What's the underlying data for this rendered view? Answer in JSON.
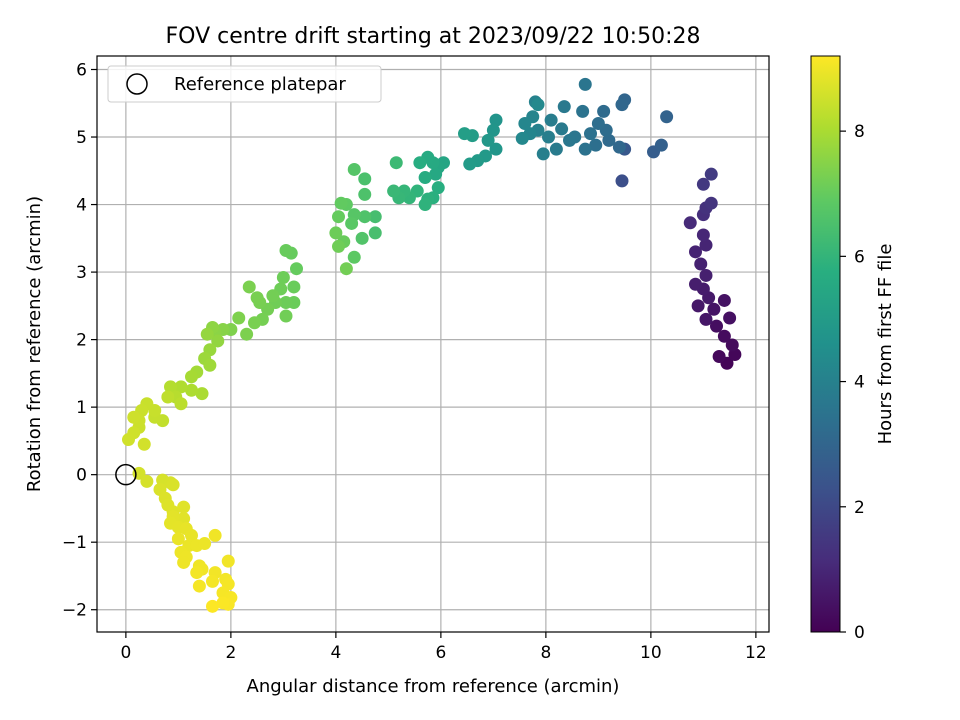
{
  "chart_data": {
    "type": "scatter",
    "title": "FOV centre drift starting at 2023/09/22 10:50:28",
    "xlabel": "Angular distance from reference (arcmin)",
    "ylabel": "Rotation from reference (arcmin)",
    "xlim": [
      -0.55,
      12.25
    ],
    "ylim": [
      -2.33,
      6.2
    ],
    "xticks": [
      0,
      2,
      4,
      6,
      8,
      10,
      12
    ],
    "yticks": [
      -2,
      -1,
      0,
      1,
      2,
      3,
      4,
      5,
      6
    ],
    "grid": true,
    "legend": {
      "position": "top-left",
      "entries": [
        "Reference platepar"
      ]
    },
    "reference_point": {
      "x": 0,
      "y": 0,
      "label": "Reference platepar"
    },
    "colorbar": {
      "label": "Hours from first FF file",
      "colormap": "viridis",
      "range": [
        0,
        9.2
      ],
      "ticks": [
        0,
        2,
        4,
        6,
        8
      ]
    },
    "series": [
      {
        "points": [
          {
            "x": 11.45,
            "y": 1.65,
            "t": 0.1
          },
          {
            "x": 11.6,
            "y": 1.78,
            "t": 0.15
          },
          {
            "x": 11.3,
            "y": 1.75,
            "t": 0.2
          },
          {
            "x": 11.55,
            "y": 1.92,
            "t": 0.25
          },
          {
            "x": 11.4,
            "y": 2.05,
            "t": 0.3
          },
          {
            "x": 11.25,
            "y": 2.2,
            "t": 0.35
          },
          {
            "x": 11.5,
            "y": 2.32,
            "t": 0.4
          },
          {
            "x": 11.4,
            "y": 2.58,
            "t": 0.45
          },
          {
            "x": 11.2,
            "y": 2.45,
            "t": 0.5
          },
          {
            "x": 11.05,
            "y": 2.3,
            "t": 0.55
          },
          {
            "x": 10.9,
            "y": 2.5,
            "t": 0.6
          },
          {
            "x": 11.1,
            "y": 2.62,
            "t": 0.65
          },
          {
            "x": 11.0,
            "y": 2.75,
            "t": 0.7
          },
          {
            "x": 10.85,
            "y": 2.82,
            "t": 0.75
          },
          {
            "x": 11.05,
            "y": 2.95,
            "t": 0.8
          },
          {
            "x": 10.95,
            "y": 3.12,
            "t": 0.85
          },
          {
            "x": 10.85,
            "y": 3.3,
            "t": 0.9
          },
          {
            "x": 11.05,
            "y": 3.4,
            "t": 0.95
          },
          {
            "x": 11.0,
            "y": 3.55,
            "t": 1.0
          },
          {
            "x": 10.75,
            "y": 3.73,
            "t": 1.1
          },
          {
            "x": 11.0,
            "y": 3.85,
            "t": 1.2
          },
          {
            "x": 11.05,
            "y": 3.95,
            "t": 1.3
          },
          {
            "x": 11.15,
            "y": 4.02,
            "t": 1.4
          },
          {
            "x": 11.0,
            "y": 4.3,
            "t": 1.5
          },
          {
            "x": 11.15,
            "y": 4.45,
            "t": 1.6
          },
          {
            "x": 9.45,
            "y": 4.35,
            "t": 2.2
          },
          {
            "x": 9.5,
            "y": 4.82,
            "t": 2.5
          },
          {
            "x": 10.05,
            "y": 4.78,
            "t": 2.7
          },
          {
            "x": 10.2,
            "y": 4.88,
            "t": 2.8
          },
          {
            "x": 10.3,
            "y": 5.3,
            "t": 2.9
          },
          {
            "x": 9.5,
            "y": 5.55,
            "t": 3.0
          },
          {
            "x": 9.45,
            "y": 5.48,
            "t": 3.05
          },
          {
            "x": 9.4,
            "y": 4.85,
            "t": 3.1
          },
          {
            "x": 9.2,
            "y": 4.95,
            "t": 3.15
          },
          {
            "x": 9.1,
            "y": 5.38,
            "t": 3.2
          },
          {
            "x": 9.15,
            "y": 5.1,
            "t": 3.25
          },
          {
            "x": 9.0,
            "y": 5.2,
            "t": 3.3
          },
          {
            "x": 8.95,
            "y": 4.88,
            "t": 3.35
          },
          {
            "x": 8.85,
            "y": 5.05,
            "t": 3.4
          },
          {
            "x": 8.75,
            "y": 4.82,
            "t": 3.45
          },
          {
            "x": 8.7,
            "y": 5.38,
            "t": 3.5
          },
          {
            "x": 8.75,
            "y": 5.78,
            "t": 3.55
          },
          {
            "x": 8.55,
            "y": 5.0,
            "t": 3.6
          },
          {
            "x": 8.45,
            "y": 4.95,
            "t": 3.65
          },
          {
            "x": 8.35,
            "y": 5.45,
            "t": 3.7
          },
          {
            "x": 8.3,
            "y": 5.12,
            "t": 3.75
          },
          {
            "x": 8.2,
            "y": 4.82,
            "t": 3.8
          },
          {
            "x": 8.1,
            "y": 5.25,
            "t": 3.85
          },
          {
            "x": 8.05,
            "y": 5.0,
            "t": 3.9
          },
          {
            "x": 7.95,
            "y": 4.75,
            "t": 3.95
          },
          {
            "x": 7.85,
            "y": 5.1,
            "t": 4.0
          },
          {
            "x": 7.8,
            "y": 5.52,
            "t": 4.05
          },
          {
            "x": 7.75,
            "y": 5.3,
            "t": 4.1
          },
          {
            "x": 7.7,
            "y": 5.05,
            "t": 4.15
          },
          {
            "x": 7.6,
            "y": 5.2,
            "t": 4.2
          },
          {
            "x": 7.55,
            "y": 4.98,
            "t": 4.25
          },
          {
            "x": 7.85,
            "y": 5.48,
            "t": 4.3
          },
          {
            "x": 7.05,
            "y": 5.25,
            "t": 4.7
          },
          {
            "x": 7.0,
            "y": 5.1,
            "t": 4.75
          },
          {
            "x": 7.05,
            "y": 4.82,
            "t": 4.8
          },
          {
            "x": 6.9,
            "y": 4.95,
            "t": 4.85
          },
          {
            "x": 6.85,
            "y": 4.72,
            "t": 4.9
          },
          {
            "x": 6.7,
            "y": 4.65,
            "t": 4.95
          },
          {
            "x": 6.55,
            "y": 4.6,
            "t": 5.0
          },
          {
            "x": 6.6,
            "y": 5.02,
            "t": 5.05
          },
          {
            "x": 6.45,
            "y": 5.05,
            "t": 5.1
          },
          {
            "x": 6.05,
            "y": 4.62,
            "t": 5.4
          },
          {
            "x": 5.95,
            "y": 4.55,
            "t": 5.45
          },
          {
            "x": 5.9,
            "y": 4.45,
            "t": 5.5
          },
          {
            "x": 5.85,
            "y": 4.62,
            "t": 5.55
          },
          {
            "x": 5.75,
            "y": 4.7,
            "t": 5.6
          },
          {
            "x": 5.7,
            "y": 4.4,
            "t": 5.65
          },
          {
            "x": 5.6,
            "y": 4.62,
            "t": 5.7
          },
          {
            "x": 5.95,
            "y": 4.25,
            "t": 5.75
          },
          {
            "x": 5.85,
            "y": 4.1,
            "t": 5.8
          },
          {
            "x": 5.75,
            "y": 4.08,
            "t": 5.85
          },
          {
            "x": 5.7,
            "y": 4.0,
            "t": 5.9
          },
          {
            "x": 5.55,
            "y": 4.2,
            "t": 5.95
          },
          {
            "x": 5.4,
            "y": 4.1,
            "t": 6.0
          },
          {
            "x": 5.3,
            "y": 4.2,
            "t": 6.05
          },
          {
            "x": 5.2,
            "y": 4.1,
            "t": 6.1
          },
          {
            "x": 5.1,
            "y": 4.2,
            "t": 6.15
          },
          {
            "x": 5.15,
            "y": 4.62,
            "t": 6.2
          },
          {
            "x": 4.75,
            "y": 3.82,
            "t": 6.4
          },
          {
            "x": 4.75,
            "y": 3.58,
            "t": 6.45
          },
          {
            "x": 4.55,
            "y": 4.38,
            "t": 6.5
          },
          {
            "x": 4.55,
            "y": 4.15,
            "t": 6.55
          },
          {
            "x": 4.55,
            "y": 3.82,
            "t": 6.6
          },
          {
            "x": 4.5,
            "y": 3.5,
            "t": 6.65
          },
          {
            "x": 4.35,
            "y": 4.52,
            "t": 6.7
          },
          {
            "x": 4.35,
            "y": 3.85,
            "t": 6.75
          },
          {
            "x": 4.3,
            "y": 3.72,
            "t": 6.8
          },
          {
            "x": 4.35,
            "y": 3.22,
            "t": 6.85
          },
          {
            "x": 4.2,
            "y": 4.0,
            "t": 6.9
          },
          {
            "x": 4.1,
            "y": 4.02,
            "t": 6.95
          },
          {
            "x": 4.05,
            "y": 3.82,
            "t": 7.0
          },
          {
            "x": 4.15,
            "y": 3.45,
            "t": 7.05
          },
          {
            "x": 4.0,
            "y": 3.58,
            "t": 7.1
          },
          {
            "x": 4.05,
            "y": 3.38,
            "t": 7.15
          },
          {
            "x": 4.2,
            "y": 3.05,
            "t": 7.2
          },
          {
            "x": 3.25,
            "y": 3.05,
            "t": 7.0
          },
          {
            "x": 3.15,
            "y": 3.28,
            "t": 7.02
          },
          {
            "x": 3.05,
            "y": 3.32,
            "t": 7.04
          },
          {
            "x": 3.2,
            "y": 2.78,
            "t": 7.06
          },
          {
            "x": 3.2,
            "y": 2.55,
            "t": 7.08
          },
          {
            "x": 3.05,
            "y": 2.55,
            "t": 7.1
          },
          {
            "x": 3.0,
            "y": 2.92,
            "t": 7.12
          },
          {
            "x": 2.95,
            "y": 2.75,
            "t": 7.14
          },
          {
            "x": 2.85,
            "y": 2.55,
            "t": 7.16
          },
          {
            "x": 3.05,
            "y": 2.35,
            "t": 7.18
          },
          {
            "x": 2.8,
            "y": 2.65,
            "t": 7.2
          },
          {
            "x": 2.7,
            "y": 2.45,
            "t": 7.22
          },
          {
            "x": 2.6,
            "y": 2.3,
            "t": 7.24
          },
          {
            "x": 2.55,
            "y": 2.55,
            "t": 7.26
          },
          {
            "x": 2.5,
            "y": 2.62,
            "t": 7.28
          },
          {
            "x": 2.45,
            "y": 2.25,
            "t": 7.3
          },
          {
            "x": 2.35,
            "y": 2.78,
            "t": 7.32
          },
          {
            "x": 2.3,
            "y": 2.08,
            "t": 7.34
          },
          {
            "x": 2.15,
            "y": 2.32,
            "t": 7.36
          },
          {
            "x": 2.0,
            "y": 2.15,
            "t": 7.38
          },
          {
            "x": 1.85,
            "y": 2.15,
            "t": 7.5
          },
          {
            "x": 1.7,
            "y": 2.1,
            "t": 7.55
          },
          {
            "x": 1.65,
            "y": 2.18,
            "t": 7.6
          },
          {
            "x": 1.75,
            "y": 1.98,
            "t": 7.65
          },
          {
            "x": 1.55,
            "y": 2.08,
            "t": 7.7
          },
          {
            "x": 1.6,
            "y": 1.85,
            "t": 7.75
          },
          {
            "x": 1.5,
            "y": 1.72,
            "t": 7.8
          },
          {
            "x": 1.6,
            "y": 1.62,
            "t": 7.85
          },
          {
            "x": 1.35,
            "y": 1.52,
            "t": 7.9
          },
          {
            "x": 1.25,
            "y": 1.45,
            "t": 7.95
          },
          {
            "x": 1.45,
            "y": 1.2,
            "t": 8.0
          },
          {
            "x": 1.25,
            "y": 1.25,
            "t": 8.05
          },
          {
            "x": 1.05,
            "y": 1.3,
            "t": 8.1
          },
          {
            "x": 0.85,
            "y": 1.3,
            "t": 8.15
          },
          {
            "x": 0.95,
            "y": 1.15,
            "t": 8.2
          },
          {
            "x": 1.05,
            "y": 1.05,
            "t": 8.25
          },
          {
            "x": 0.8,
            "y": 1.15,
            "t": 8.3
          },
          {
            "x": 0.7,
            "y": 0.8,
            "t": 8.35
          },
          {
            "x": 0.55,
            "y": 0.85,
            "t": 8.4
          },
          {
            "x": 0.55,
            "y": 0.95,
            "t": 8.42
          },
          {
            "x": 0.4,
            "y": 1.05,
            "t": 8.44
          },
          {
            "x": 0.3,
            "y": 0.95,
            "t": 8.46
          },
          {
            "x": 0.25,
            "y": 0.7,
            "t": 8.48
          },
          {
            "x": 0.25,
            "y": 0.8,
            "t": 8.5
          },
          {
            "x": 0.15,
            "y": 0.85,
            "t": 8.52
          },
          {
            "x": 0.15,
            "y": 0.62,
            "t": 8.54
          },
          {
            "x": 0.05,
            "y": 0.52,
            "t": 8.56
          },
          {
            "x": 0.35,
            "y": 0.45,
            "t": 8.58
          },
          {
            "x": 0.25,
            "y": 0.02,
            "t": 8.6
          },
          {
            "x": 0.4,
            "y": -0.1,
            "t": 8.62
          },
          {
            "x": 0.7,
            "y": -0.08,
            "t": 8.64
          },
          {
            "x": 0.85,
            "y": -0.12,
            "t": 8.66
          },
          {
            "x": 0.9,
            "y": -0.15,
            "t": 8.68
          },
          {
            "x": 0.65,
            "y": -0.22,
            "t": 8.7
          },
          {
            "x": 0.75,
            "y": -0.35,
            "t": 8.72
          },
          {
            "x": 0.8,
            "y": -0.45,
            "t": 8.74
          },
          {
            "x": 0.9,
            "y": -0.55,
            "t": 8.76
          },
          {
            "x": 1.1,
            "y": -0.48,
            "t": 8.78
          },
          {
            "x": 1.1,
            "y": -0.65,
            "t": 8.8
          },
          {
            "x": 0.9,
            "y": -0.62,
            "t": 8.82
          },
          {
            "x": 0.85,
            "y": -0.72,
            "t": 8.84
          },
          {
            "x": 1.0,
            "y": -0.78,
            "t": 8.86
          },
          {
            "x": 1.15,
            "y": -0.8,
            "t": 8.88
          },
          {
            "x": 1.25,
            "y": -0.9,
            "t": 8.9
          },
          {
            "x": 1.0,
            "y": -0.95,
            "t": 8.92
          },
          {
            "x": 1.2,
            "y": -1.05,
            "t": 8.94
          },
          {
            "x": 1.35,
            "y": -1.05,
            "t": 8.95
          },
          {
            "x": 1.5,
            "y": -1.02,
            "t": 8.96
          },
          {
            "x": 1.05,
            "y": -1.15,
            "t": 8.97
          },
          {
            "x": 1.15,
            "y": -1.22,
            "t": 8.98
          },
          {
            "x": 1.1,
            "y": -1.3,
            "t": 8.99
          },
          {
            "x": 1.4,
            "y": -1.35,
            "t": 9.0
          },
          {
            "x": 1.45,
            "y": -1.4,
            "t": 9.01
          },
          {
            "x": 1.7,
            "y": -0.9,
            "t": 9.02
          },
          {
            "x": 1.95,
            "y": -1.28,
            "t": 9.03
          },
          {
            "x": 1.7,
            "y": -1.45,
            "t": 9.04
          },
          {
            "x": 1.35,
            "y": -1.45,
            "t": 9.05
          },
          {
            "x": 1.9,
            "y": -1.55,
            "t": 9.06
          },
          {
            "x": 1.65,
            "y": -1.58,
            "t": 9.07
          },
          {
            "x": 1.95,
            "y": -1.62,
            "t": 9.08
          },
          {
            "x": 1.4,
            "y": -1.65,
            "t": 9.09
          },
          {
            "x": 1.85,
            "y": -1.75,
            "t": 9.1
          },
          {
            "x": 2.0,
            "y": -1.82,
            "t": 9.12
          },
          {
            "x": 1.95,
            "y": -1.92,
            "t": 9.14
          },
          {
            "x": 1.85,
            "y": -1.9,
            "t": 9.16
          },
          {
            "x": 1.65,
            "y": -1.95,
            "t": 9.18
          }
        ]
      }
    ]
  }
}
